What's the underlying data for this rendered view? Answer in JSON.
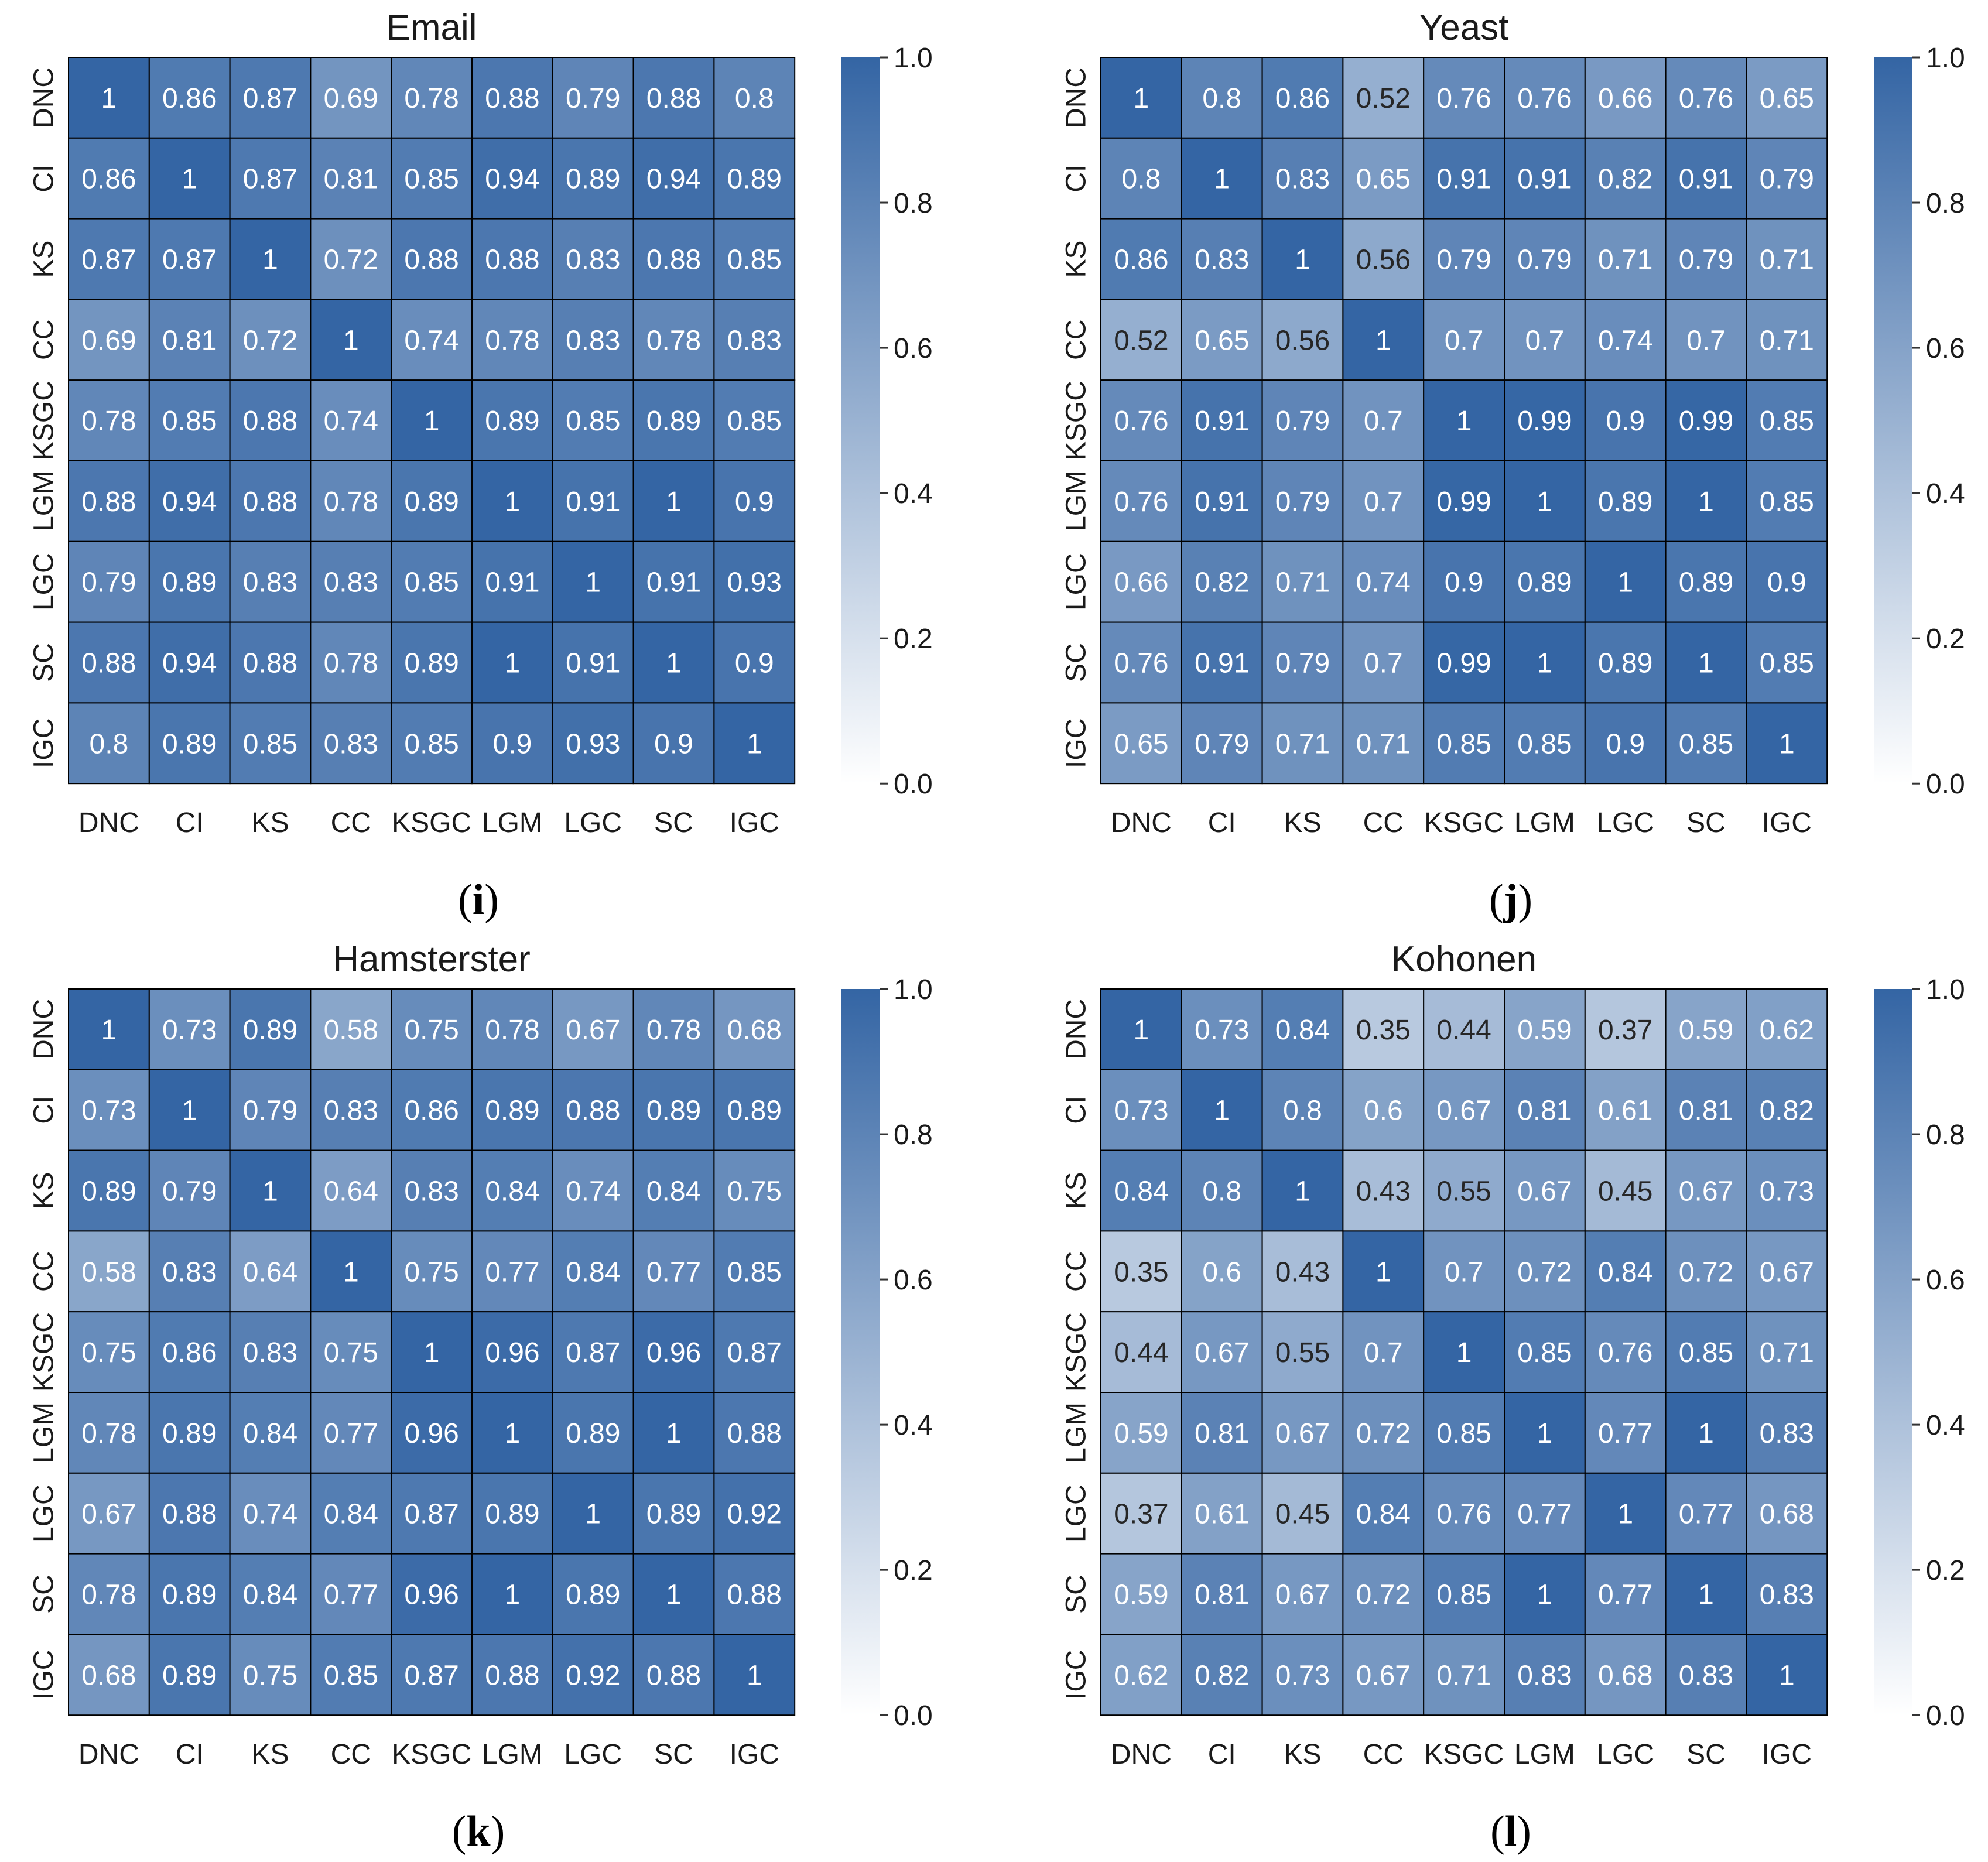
{
  "colors": {
    "low": "#ffffff",
    "high": "#3465a4",
    "dark_text": "#262626",
    "light_text": "#ffffff",
    "grid": "#000000"
  },
  "colorbar": {
    "ticks": [
      "0.0",
      "0.2",
      "0.4",
      "0.6",
      "0.8",
      "1.0"
    ],
    "min": 0,
    "max": 1
  },
  "chart_data": [
    {
      "type": "heatmap",
      "title": "Email",
      "panel_label": "i",
      "xlabels": [
        "DNC",
        "CI",
        "KS",
        "CC",
        "KSGC",
        "LGM",
        "LGC",
        "SC",
        "IGC"
      ],
      "ylabels": [
        "DNC",
        "CI",
        "KS",
        "CC",
        "KSGC",
        "LGM",
        "LGC",
        "SC",
        "IGC"
      ],
      "values": [
        [
          1,
          0.86,
          0.87,
          0.69,
          0.78,
          0.88,
          0.79,
          0.88,
          0.8
        ],
        [
          0.86,
          1,
          0.87,
          0.81,
          0.85,
          0.94,
          0.89,
          0.94,
          0.89
        ],
        [
          0.87,
          0.87,
          1,
          0.72,
          0.88,
          0.88,
          0.83,
          0.88,
          0.85
        ],
        [
          0.69,
          0.81,
          0.72,
          1,
          0.74,
          0.78,
          0.83,
          0.78,
          0.83
        ],
        [
          0.78,
          0.85,
          0.88,
          0.74,
          1,
          0.89,
          0.85,
          0.89,
          0.85
        ],
        [
          0.88,
          0.94,
          0.88,
          0.78,
          0.89,
          1,
          0.91,
          1,
          0.9
        ],
        [
          0.79,
          0.89,
          0.83,
          0.83,
          0.85,
          0.91,
          1,
          0.91,
          0.93
        ],
        [
          0.88,
          0.94,
          0.88,
          0.78,
          0.89,
          1,
          0.91,
          1,
          0.9
        ],
        [
          0.8,
          0.89,
          0.85,
          0.83,
          0.85,
          0.9,
          0.93,
          0.9,
          1
        ]
      ],
      "vmin": 0,
      "vmax": 1
    },
    {
      "type": "heatmap",
      "title": "Yeast",
      "panel_label": "j",
      "xlabels": [
        "DNC",
        "CI",
        "KS",
        "CC",
        "KSGC",
        "LGM",
        "LGC",
        "SC",
        "IGC"
      ],
      "ylabels": [
        "DNC",
        "CI",
        "KS",
        "CC",
        "KSGC",
        "LGM",
        "LGC",
        "SC",
        "IGC"
      ],
      "values": [
        [
          1,
          0.8,
          0.86,
          0.52,
          0.76,
          0.76,
          0.66,
          0.76,
          0.65
        ],
        [
          0.8,
          1,
          0.83,
          0.65,
          0.91,
          0.91,
          0.82,
          0.91,
          0.79
        ],
        [
          0.86,
          0.83,
          1,
          0.56,
          0.79,
          0.79,
          0.71,
          0.79,
          0.71
        ],
        [
          0.52,
          0.65,
          0.56,
          1,
          0.7,
          0.7,
          0.74,
          0.7,
          0.71
        ],
        [
          0.76,
          0.91,
          0.79,
          0.7,
          1,
          0.99,
          0.9,
          0.99,
          0.85
        ],
        [
          0.76,
          0.91,
          0.79,
          0.7,
          0.99,
          1,
          0.89,
          1,
          0.85
        ],
        [
          0.66,
          0.82,
          0.71,
          0.74,
          0.9,
          0.89,
          1,
          0.89,
          0.9
        ],
        [
          0.76,
          0.91,
          0.79,
          0.7,
          0.99,
          1,
          0.89,
          1,
          0.85
        ],
        [
          0.65,
          0.79,
          0.71,
          0.71,
          0.85,
          0.85,
          0.9,
          0.85,
          1
        ]
      ],
      "vmin": 0,
      "vmax": 1
    },
    {
      "type": "heatmap",
      "title": "Hamsterster",
      "panel_label": "k",
      "xlabels": [
        "DNC",
        "CI",
        "KS",
        "CC",
        "KSGC",
        "LGM",
        "LGC",
        "SC",
        "IGC"
      ],
      "ylabels": [
        "DNC",
        "CI",
        "KS",
        "CC",
        "KSGC",
        "LGM",
        "LGC",
        "SC",
        "IGC"
      ],
      "values": [
        [
          1,
          0.73,
          0.89,
          0.58,
          0.75,
          0.78,
          0.67,
          0.78,
          0.68
        ],
        [
          0.73,
          1,
          0.79,
          0.83,
          0.86,
          0.89,
          0.88,
          0.89,
          0.89
        ],
        [
          0.89,
          0.79,
          1,
          0.64,
          0.83,
          0.84,
          0.74,
          0.84,
          0.75
        ],
        [
          0.58,
          0.83,
          0.64,
          1,
          0.75,
          0.77,
          0.84,
          0.77,
          0.85
        ],
        [
          0.75,
          0.86,
          0.83,
          0.75,
          1,
          0.96,
          0.87,
          0.96,
          0.87
        ],
        [
          0.78,
          0.89,
          0.84,
          0.77,
          0.96,
          1,
          0.89,
          1,
          0.88
        ],
        [
          0.67,
          0.88,
          0.74,
          0.84,
          0.87,
          0.89,
          1,
          0.89,
          0.92
        ],
        [
          0.78,
          0.89,
          0.84,
          0.77,
          0.96,
          1,
          0.89,
          1,
          0.88
        ],
        [
          0.68,
          0.89,
          0.75,
          0.85,
          0.87,
          0.88,
          0.92,
          0.88,
          1
        ]
      ],
      "vmin": 0,
      "vmax": 1
    },
    {
      "type": "heatmap",
      "title": "Kohonen",
      "panel_label": "l",
      "xlabels": [
        "DNC",
        "CI",
        "KS",
        "CC",
        "KSGC",
        "LGM",
        "LGC",
        "SC",
        "IGC"
      ],
      "ylabels": [
        "DNC",
        "CI",
        "KS",
        "CC",
        "KSGC",
        "LGM",
        "LGC",
        "SC",
        "IGC"
      ],
      "values": [
        [
          1,
          0.73,
          0.84,
          0.35,
          0.44,
          0.59,
          0.37,
          0.59,
          0.62
        ],
        [
          0.73,
          1,
          0.8,
          0.6,
          0.67,
          0.81,
          0.61,
          0.81,
          0.82
        ],
        [
          0.84,
          0.8,
          1,
          0.43,
          0.55,
          0.67,
          0.45,
          0.67,
          0.73
        ],
        [
          0.35,
          0.6,
          0.43,
          1,
          0.7,
          0.72,
          0.84,
          0.72,
          0.67
        ],
        [
          0.44,
          0.67,
          0.55,
          0.7,
          1,
          0.85,
          0.76,
          0.85,
          0.71
        ],
        [
          0.59,
          0.81,
          0.67,
          0.72,
          0.85,
          1,
          0.77,
          1,
          0.83
        ],
        [
          0.37,
          0.61,
          0.45,
          0.84,
          0.76,
          0.77,
          1,
          0.77,
          0.68
        ],
        [
          0.59,
          0.81,
          0.67,
          0.72,
          0.85,
          1,
          0.77,
          1,
          0.83
        ],
        [
          0.62,
          0.82,
          0.73,
          0.67,
          0.71,
          0.83,
          0.68,
          0.83,
          1
        ]
      ],
      "vmin": 0,
      "vmax": 1
    }
  ]
}
